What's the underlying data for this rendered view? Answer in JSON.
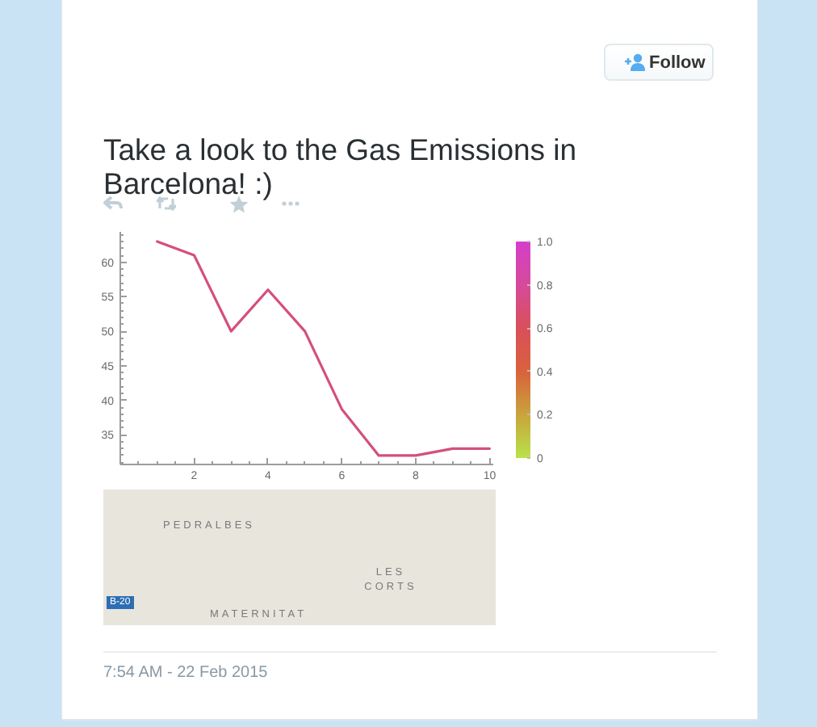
{
  "chart_data": {
    "type": "line",
    "title": "Take a look to the Gas Emissions in Barcelona! :)",
    "x": [
      1,
      2,
      3,
      4,
      5,
      6,
      7,
      8,
      9,
      10
    ],
    "series": [
      {
        "color": "#d4507a",
        "values": [
          63,
          61,
          50,
          56,
          50,
          38.7,
          32,
          32,
          33,
          33
        ]
      }
    ],
    "xlim": [
      0,
      10.1
    ],
    "ylim": [
      30.7,
      64.4
    ],
    "xticks": [
      2,
      4,
      6,
      8,
      10
    ],
    "yticks": [
      35,
      40,
      45,
      50,
      55,
      60
    ],
    "clim": [
      0,
      1
    ],
    "cticks": [
      0,
      0.2,
      0.4,
      0.6,
      0.8,
      {
        "value": 1,
        "label": "1.0"
      }
    ],
    "colors": [
      "#b9e24a",
      "#c9a43c",
      "#d9623c",
      "#d9505a",
      "#d64a9a",
      "#d43fcb"
    ],
    "annotations": [
      "Follow",
      "7:54 AM - 22 Feb 2015",
      "PEDRALBES",
      "LES CORTS",
      "MATERNITAT",
      "B-20"
    ]
  }
}
